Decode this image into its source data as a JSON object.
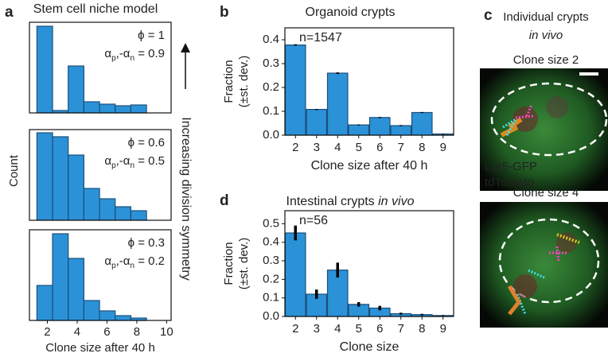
{
  "panel_labels": [
    "a",
    "b",
    "c",
    "d"
  ],
  "images": {
    "title": "Individual crypts",
    "title_italic": "in vivo",
    "captions": [
      "Clone size 2",
      "Clone size 4"
    ],
    "legend": [
      {
        "name": "Lgr5-GFP",
        "color": "#2bd42b"
      },
      {
        "name": "tdTomato",
        "color": "#e8202a"
      }
    ]
  },
  "chart_data": [
    {
      "type": "histogram",
      "title": "Stem cell niche model",
      "ylabel": "Count",
      "side_label": "Increasing division symmetry",
      "phi": "ϕ = 1",
      "alpha": [
        "α",
        "p",
        ",-α",
        "n",
        " = 0.9"
      ],
      "bins": [
        1.3,
        2.35,
        3.4,
        4.45,
        5.5,
        6.55,
        7.6,
        8.65
      ],
      "values": [
        109,
        3,
        59,
        14,
        11,
        9,
        10
      ],
      "xlim": [
        0.8,
        10.3
      ],
      "ylim": [
        0,
        114
      ],
      "color": "#2b92d8",
      "edgecolor": "#1d4f78"
    },
    {
      "type": "histogram",
      "phi": "ϕ = 0.6",
      "alpha": [
        "α",
        "p",
        ",-α",
        "n",
        " = 0.5"
      ],
      "bins": [
        1.3,
        2.35,
        3.4,
        4.45,
        5.5,
        6.55,
        7.6,
        8.65
      ],
      "values": [
        110,
        105,
        82,
        40,
        27,
        17,
        12
      ],
      "xlim": [
        0.8,
        10.3
      ],
      "ylim": [
        0,
        114
      ],
      "color": "#2b92d8",
      "edgecolor": "#1d4f78"
    },
    {
      "type": "histogram",
      "phi": "ϕ = 0.3",
      "alpha": [
        "α",
        "p",
        ",-α",
        "n",
        " = 0.2"
      ],
      "xlabel": "Clone size after 40 h",
      "bins": [
        1.3,
        2.35,
        3.4,
        4.45,
        5.5,
        6.55,
        7.6,
        8.65
      ],
      "values": [
        44,
        109,
        78,
        25,
        12,
        6,
        3
      ],
      "xlim": [
        0.8,
        10.3
      ],
      "ylim": [
        0,
        114
      ],
      "xticks": [
        2,
        4,
        6,
        8,
        10
      ],
      "color": "#2b92d8",
      "edgecolor": "#1d4f78"
    },
    {
      "type": "bar",
      "title": "Organoid crypts",
      "ylabel": [
        "Fraction",
        "(±st. dev.)"
      ],
      "xlabel": "Clone size after 40 h",
      "annotation": "n=1547",
      "categories": [
        "2",
        "3",
        "4",
        "5",
        "6",
        "7",
        "8",
        "9"
      ],
      "values": [
        0.378,
        0.108,
        0.26,
        0.043,
        0.074,
        0.04,
        0.095,
        0.005
      ],
      "errors": [
        0.003,
        0.002,
        0.003,
        0.002,
        0.002,
        0.002,
        0.002,
        0.001
      ],
      "ylim": [
        0,
        0.45
      ],
      "yticks": [
        {
          "value": 0,
          "label": "0.0"
        },
        0.1,
        0.2,
        0.3,
        0.4
      ],
      "color": "#2b92d8",
      "edgecolor": "#1d4f78"
    },
    {
      "type": "bar",
      "title": "Intestinal crypts",
      "title_italic": "in vivo",
      "ylabel": [
        "Fraction",
        "(±st. dev.)"
      ],
      "xlabel": "Clone size",
      "annotation": "n=56",
      "categories": [
        "2",
        "3",
        "4",
        "5",
        "6",
        "7",
        "8",
        "9"
      ],
      "values": [
        0.45,
        0.12,
        0.25,
        0.065,
        0.045,
        0.015,
        0.01,
        0.005
      ],
      "errors": [
        0.04,
        0.025,
        0.04,
        0.012,
        0.012,
        0.005,
        0.004,
        0.002
      ],
      "ylim": [
        0,
        0.57
      ],
      "yticks": [
        {
          "value": 0,
          "label": "0.0"
        },
        0.1,
        0.2,
        0.3,
        0.4,
        0.5
      ],
      "color": "#2b92d8",
      "edgecolor": "#1d4f78"
    }
  ]
}
